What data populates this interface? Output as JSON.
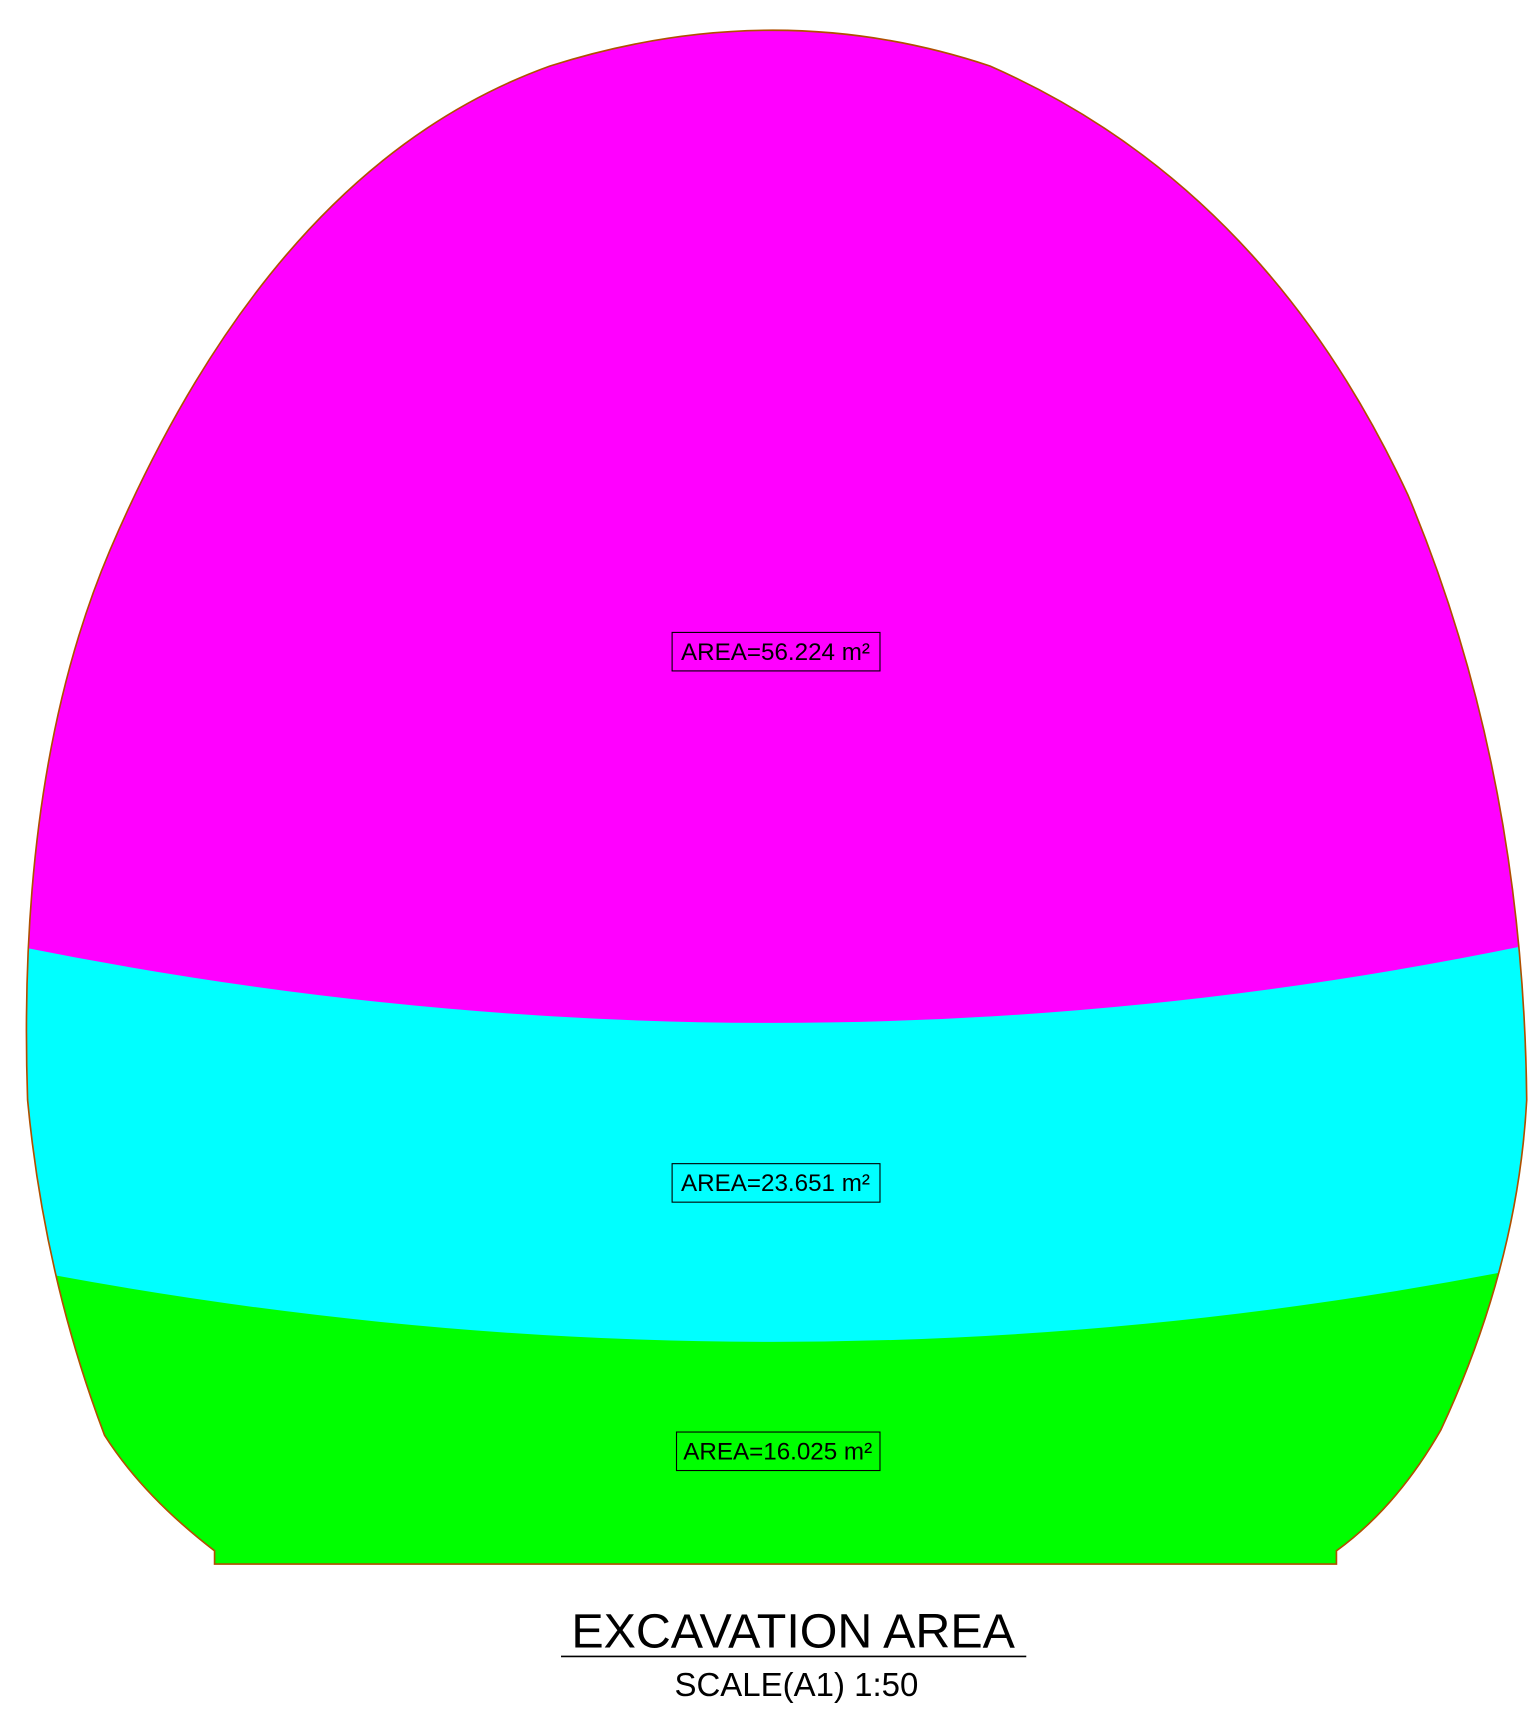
{
  "title": "EXCAVATION AREA",
  "subtitle": "SCALE(A1) 1:50",
  "regions": [
    {
      "label": "AREA=56.224 m²"
    },
    {
      "label": "AREA=23.651 m²"
    },
    {
      "label": "AREA=16.025 m²"
    }
  ]
}
